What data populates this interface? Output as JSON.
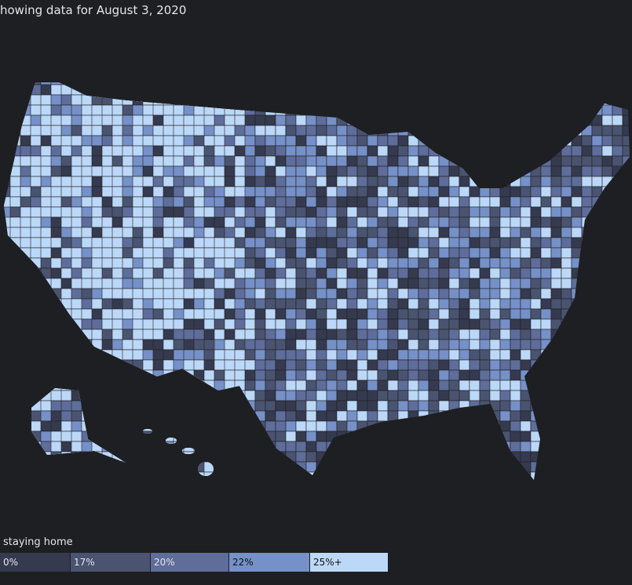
{
  "header": {
    "title": "howing data for August 3, 2020"
  },
  "legend": {
    "title": "staying home",
    "items": [
      {
        "label": "0%",
        "color": "#353a4f"
      },
      {
        "label": "17%",
        "color": "#4a5470"
      },
      {
        "label": "20%",
        "color": "#5e6d9a"
      },
      {
        "label": "22%",
        "color": "#7690c8"
      },
      {
        "label": "25%+",
        "color": "#bcd8f8"
      }
    ]
  }
}
